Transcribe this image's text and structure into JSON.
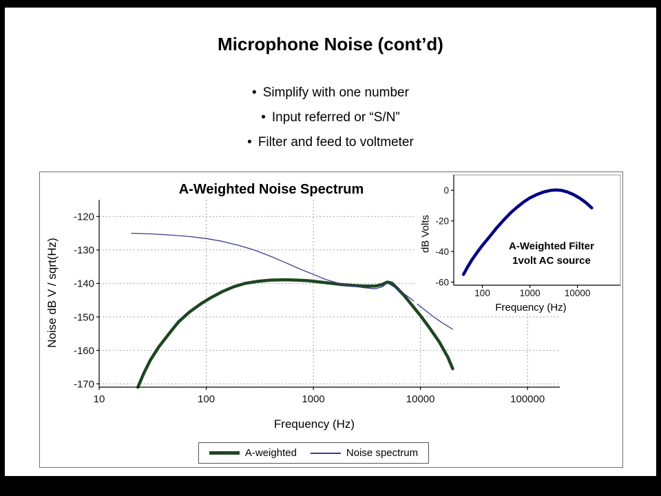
{
  "slide": {
    "title": "Microphone Noise (cont’d)",
    "bullet_marker": "•",
    "bullets": [
      "Simplify with one number",
      "Input referred or “S/N”",
      "Filter and feed to voltmeter"
    ]
  },
  "colors": {
    "a_weighted": "#1e4620",
    "noise_spectrum": "#3b3b8e",
    "inset_curve": "#000080",
    "grid": "#a0a0a0",
    "axis": "#000000",
    "slide_bg": "#ffffff",
    "frame_bg": "#000000"
  },
  "chart_data": [
    {
      "type": "line",
      "title": "A-Weighted Noise Spectrum",
      "xlabel": "Frequency (Hz)",
      "ylabel": "Noise dB V / sqrt(Hz)",
      "x_scale": "log",
      "xlim": [
        10,
        200000
      ],
      "ylim": [
        -171,
        -115
      ],
      "x_ticks": [
        10,
        100,
        1000,
        10000,
        100000
      ],
      "y_ticks": [
        -120,
        -130,
        -140,
        -150,
        -160,
        -170
      ],
      "grid": true,
      "legend_position": "bottom",
      "series": [
        {
          "name": "A-weighted",
          "color_key": "a_weighted",
          "width": 4.5,
          "points": [
            [
              23,
              -171
            ],
            [
              26,
              -167
            ],
            [
              30,
              -163
            ],
            [
              36,
              -159
            ],
            [
              45,
              -155
            ],
            [
              55,
              -151.5
            ],
            [
              70,
              -148.5
            ],
            [
              90,
              -146
            ],
            [
              110,
              -144.3
            ],
            [
              140,
              -142.5
            ],
            [
              180,
              -141
            ],
            [
              230,
              -140
            ],
            [
              300,
              -139.4
            ],
            [
              400,
              -139
            ],
            [
              550,
              -138.9
            ],
            [
              700,
              -139
            ],
            [
              900,
              -139.2
            ],
            [
              1100,
              -139.5
            ],
            [
              1400,
              -139.9
            ],
            [
              1800,
              -140.3
            ],
            [
              2300,
              -140.6
            ],
            [
              3000,
              -140.8
            ],
            [
              3800,
              -140.8
            ],
            [
              4400,
              -140.3
            ],
            [
              4900,
              -139.6
            ],
            [
              5400,
              -139.9
            ],
            [
              6000,
              -141.3
            ],
            [
              7000,
              -143.5
            ],
            [
              8000,
              -145.8
            ],
            [
              9000,
              -147.8
            ],
            [
              10000,
              -149.6
            ],
            [
              12000,
              -153
            ],
            [
              15000,
              -157.5
            ],
            [
              18000,
              -162
            ],
            [
              20000,
              -165.5
            ]
          ]
        },
        {
          "name": "Noise spectrum",
          "color_key": "noise_spectrum",
          "width": 1.3,
          "points": [
            [
              20,
              -125
            ],
            [
              30,
              -125.2
            ],
            [
              50,
              -125.6
            ],
            [
              70,
              -126
            ],
            [
              100,
              -126.6
            ],
            [
              140,
              -127.4
            ],
            [
              200,
              -128.6
            ],
            [
              280,
              -130
            ],
            [
              400,
              -131.9
            ],
            [
              550,
              -133.8
            ],
            [
              750,
              -135.7
            ],
            [
              1000,
              -137.3
            ],
            [
              1300,
              -138.8
            ],
            [
              1700,
              -139.9
            ],
            [
              2200,
              -140.7
            ],
            [
              3000,
              -141.3
            ],
            [
              3800,
              -141.6
            ],
            [
              4400,
              -141
            ],
            [
              4900,
              -139.9
            ],
            [
              5400,
              -140.6
            ],
            [
              6500,
              -142.3
            ],
            [
              8000,
              -144.4
            ],
            [
              10000,
              -146.9
            ],
            [
              13000,
              -149.8
            ],
            [
              16000,
              -151.8
            ],
            [
              20000,
              -153.7
            ]
          ]
        }
      ]
    },
    {
      "type": "line",
      "title": "",
      "annotation": [
        "A-Weighted Filter",
        "1volt AC source"
      ],
      "xlabel": "Frequency (Hz)",
      "ylabel": "dB Volts",
      "x_scale": "log",
      "xlim": [
        25,
        80000
      ],
      "ylim": [
        -62,
        10
      ],
      "x_ticks": [
        100,
        1000,
        10000
      ],
      "y_ticks": [
        0,
        -20,
        -40,
        -60
      ],
      "grid": false,
      "series": [
        {
          "name": "A-weighted filter",
          "color_key": "inset_curve",
          "width": 4.5,
          "points": [
            [
              40,
              -55
            ],
            [
              48,
              -50.5
            ],
            [
              60,
              -45.5
            ],
            [
              80,
              -40
            ],
            [
              100,
              -36
            ],
            [
              140,
              -30.5
            ],
            [
              200,
              -24.5
            ],
            [
              280,
              -19.5
            ],
            [
              400,
              -14.5
            ],
            [
              550,
              -10.8
            ],
            [
              750,
              -7.5
            ],
            [
              1000,
              -5
            ],
            [
              1400,
              -2.8
            ],
            [
              2000,
              -1
            ],
            [
              2700,
              -0.1
            ],
            [
              3500,
              0.2
            ],
            [
              4500,
              0
            ],
            [
              6000,
              -1
            ],
            [
              8000,
              -2.6
            ],
            [
              11000,
              -5
            ],
            [
              15000,
              -8
            ],
            [
              20000,
              -11.5
            ]
          ]
        }
      ]
    }
  ]
}
